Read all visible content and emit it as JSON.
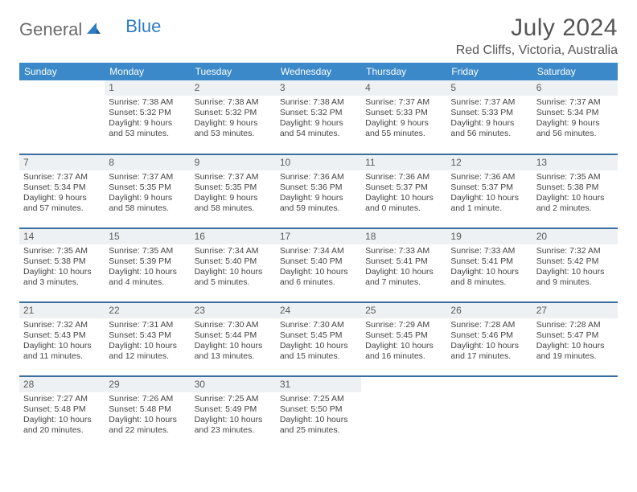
{
  "logo": {
    "text1": "General",
    "text2": "Blue"
  },
  "title": {
    "month": "July 2024",
    "location": "Red Cliffs, Victoria, Australia"
  },
  "colors": {
    "header_bg": "#3b89c9",
    "row_border": "#3b6ea0",
    "daynum_bg": "#eef1f3",
    "logo_blue": "#2e7cc2"
  },
  "weekdays": [
    "Sunday",
    "Monday",
    "Tuesday",
    "Wednesday",
    "Thursday",
    "Friday",
    "Saturday"
  ],
  "weeks": [
    [
      {
        "n": "",
        "sr": "",
        "ss": "",
        "dl": ""
      },
      {
        "n": "1",
        "sr": "Sunrise: 7:38 AM",
        "ss": "Sunset: 5:32 PM",
        "dl": "Daylight: 9 hours and 53 minutes."
      },
      {
        "n": "2",
        "sr": "Sunrise: 7:38 AM",
        "ss": "Sunset: 5:32 PM",
        "dl": "Daylight: 9 hours and 53 minutes."
      },
      {
        "n": "3",
        "sr": "Sunrise: 7:38 AM",
        "ss": "Sunset: 5:32 PM",
        "dl": "Daylight: 9 hours and 54 minutes."
      },
      {
        "n": "4",
        "sr": "Sunrise: 7:37 AM",
        "ss": "Sunset: 5:33 PM",
        "dl": "Daylight: 9 hours and 55 minutes."
      },
      {
        "n": "5",
        "sr": "Sunrise: 7:37 AM",
        "ss": "Sunset: 5:33 PM",
        "dl": "Daylight: 9 hours and 56 minutes."
      },
      {
        "n": "6",
        "sr": "Sunrise: 7:37 AM",
        "ss": "Sunset: 5:34 PM",
        "dl": "Daylight: 9 hours and 56 minutes."
      }
    ],
    [
      {
        "n": "7",
        "sr": "Sunrise: 7:37 AM",
        "ss": "Sunset: 5:34 PM",
        "dl": "Daylight: 9 hours and 57 minutes."
      },
      {
        "n": "8",
        "sr": "Sunrise: 7:37 AM",
        "ss": "Sunset: 5:35 PM",
        "dl": "Daylight: 9 hours and 58 minutes."
      },
      {
        "n": "9",
        "sr": "Sunrise: 7:37 AM",
        "ss": "Sunset: 5:35 PM",
        "dl": "Daylight: 9 hours and 58 minutes."
      },
      {
        "n": "10",
        "sr": "Sunrise: 7:36 AM",
        "ss": "Sunset: 5:36 PM",
        "dl": "Daylight: 9 hours and 59 minutes."
      },
      {
        "n": "11",
        "sr": "Sunrise: 7:36 AM",
        "ss": "Sunset: 5:37 PM",
        "dl": "Daylight: 10 hours and 0 minutes."
      },
      {
        "n": "12",
        "sr": "Sunrise: 7:36 AM",
        "ss": "Sunset: 5:37 PM",
        "dl": "Daylight: 10 hours and 1 minute."
      },
      {
        "n": "13",
        "sr": "Sunrise: 7:35 AM",
        "ss": "Sunset: 5:38 PM",
        "dl": "Daylight: 10 hours and 2 minutes."
      }
    ],
    [
      {
        "n": "14",
        "sr": "Sunrise: 7:35 AM",
        "ss": "Sunset: 5:38 PM",
        "dl": "Daylight: 10 hours and 3 minutes."
      },
      {
        "n": "15",
        "sr": "Sunrise: 7:35 AM",
        "ss": "Sunset: 5:39 PM",
        "dl": "Daylight: 10 hours and 4 minutes."
      },
      {
        "n": "16",
        "sr": "Sunrise: 7:34 AM",
        "ss": "Sunset: 5:40 PM",
        "dl": "Daylight: 10 hours and 5 minutes."
      },
      {
        "n": "17",
        "sr": "Sunrise: 7:34 AM",
        "ss": "Sunset: 5:40 PM",
        "dl": "Daylight: 10 hours and 6 minutes."
      },
      {
        "n": "18",
        "sr": "Sunrise: 7:33 AM",
        "ss": "Sunset: 5:41 PM",
        "dl": "Daylight: 10 hours and 7 minutes."
      },
      {
        "n": "19",
        "sr": "Sunrise: 7:33 AM",
        "ss": "Sunset: 5:41 PM",
        "dl": "Daylight: 10 hours and 8 minutes."
      },
      {
        "n": "20",
        "sr": "Sunrise: 7:32 AM",
        "ss": "Sunset: 5:42 PM",
        "dl": "Daylight: 10 hours and 9 minutes."
      }
    ],
    [
      {
        "n": "21",
        "sr": "Sunrise: 7:32 AM",
        "ss": "Sunset: 5:43 PM",
        "dl": "Daylight: 10 hours and 11 minutes."
      },
      {
        "n": "22",
        "sr": "Sunrise: 7:31 AM",
        "ss": "Sunset: 5:43 PM",
        "dl": "Daylight: 10 hours and 12 minutes."
      },
      {
        "n": "23",
        "sr": "Sunrise: 7:30 AM",
        "ss": "Sunset: 5:44 PM",
        "dl": "Daylight: 10 hours and 13 minutes."
      },
      {
        "n": "24",
        "sr": "Sunrise: 7:30 AM",
        "ss": "Sunset: 5:45 PM",
        "dl": "Daylight: 10 hours and 15 minutes."
      },
      {
        "n": "25",
        "sr": "Sunrise: 7:29 AM",
        "ss": "Sunset: 5:45 PM",
        "dl": "Daylight: 10 hours and 16 minutes."
      },
      {
        "n": "26",
        "sr": "Sunrise: 7:28 AM",
        "ss": "Sunset: 5:46 PM",
        "dl": "Daylight: 10 hours and 17 minutes."
      },
      {
        "n": "27",
        "sr": "Sunrise: 7:28 AM",
        "ss": "Sunset: 5:47 PM",
        "dl": "Daylight: 10 hours and 19 minutes."
      }
    ],
    [
      {
        "n": "28",
        "sr": "Sunrise: 7:27 AM",
        "ss": "Sunset: 5:48 PM",
        "dl": "Daylight: 10 hours and 20 minutes."
      },
      {
        "n": "29",
        "sr": "Sunrise: 7:26 AM",
        "ss": "Sunset: 5:48 PM",
        "dl": "Daylight: 10 hours and 22 minutes."
      },
      {
        "n": "30",
        "sr": "Sunrise: 7:25 AM",
        "ss": "Sunset: 5:49 PM",
        "dl": "Daylight: 10 hours and 23 minutes."
      },
      {
        "n": "31",
        "sr": "Sunrise: 7:25 AM",
        "ss": "Sunset: 5:50 PM",
        "dl": "Daylight: 10 hours and 25 minutes."
      },
      {
        "n": "",
        "sr": "",
        "ss": "",
        "dl": ""
      },
      {
        "n": "",
        "sr": "",
        "ss": "",
        "dl": ""
      },
      {
        "n": "",
        "sr": "",
        "ss": "",
        "dl": ""
      }
    ]
  ]
}
